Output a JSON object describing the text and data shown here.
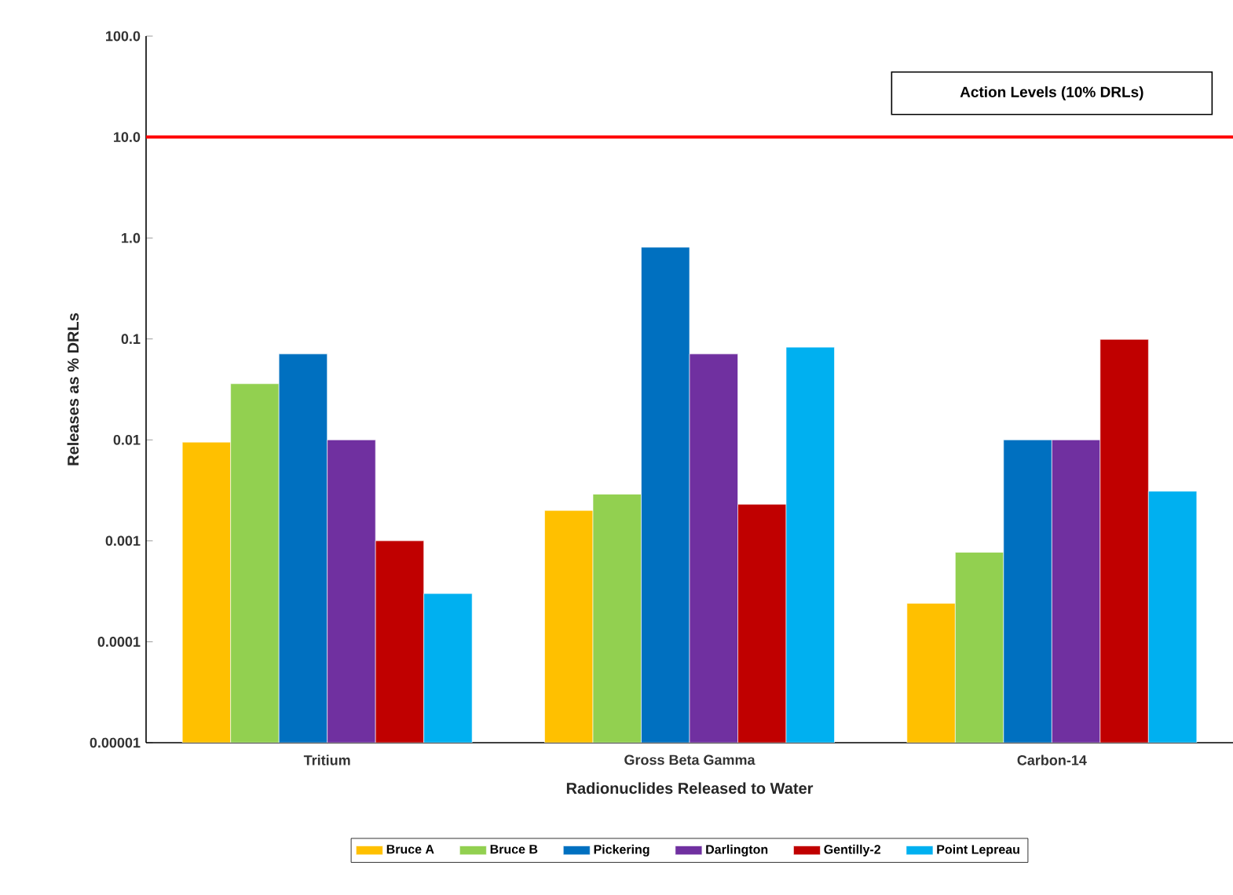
{
  "chart_data": {
    "type": "bar",
    "xlabel": "Radionuclides Released to Water",
    "ylabel": "Releases as % DRLs",
    "categories": [
      "Tritium",
      "Gross Beta Gamma",
      "Carbon-14"
    ],
    "series": [
      {
        "name": "Bruce A",
        "color": "#ffc000",
        "values": [
          0.0095,
          0.002,
          0.00024
        ]
      },
      {
        "name": "Bruce B",
        "color": "#92d050",
        "values": [
          0.036,
          0.0029,
          0.00077
        ]
      },
      {
        "name": "Pickering",
        "color": "#0070c0",
        "values": [
          0.071,
          0.81,
          0.01
        ]
      },
      {
        "name": "Darlington",
        "color": "#7030a0",
        "values": [
          0.01,
          0.071,
          0.01
        ]
      },
      {
        "name": "Gentilly-2",
        "color": "#c00000",
        "values": [
          0.001,
          0.0023,
          0.099
        ]
      },
      {
        "name": "Point Lepreau",
        "color": "#00b0f0",
        "values": [
          0.0003,
          0.083,
          0.0031
        ]
      }
    ],
    "log": true,
    "ylim": [
      1e-05,
      100
    ],
    "yticks": [
      {
        "value": 100,
        "label": "100.0"
      },
      {
        "value": 10,
        "label": "10.0"
      },
      {
        "value": 1,
        "label": "1.0"
      },
      0.1,
      0.01,
      0.001,
      0.0001,
      {
        "value": 1e-05,
        "label": "0.00001"
      }
    ],
    "ref_lines": [
      {
        "axis": "y",
        "value": 10,
        "label": "Action Levels (10% DRLs)",
        "color": "#ff0000"
      }
    ],
    "legend": "bottom",
    "grid": false
  }
}
